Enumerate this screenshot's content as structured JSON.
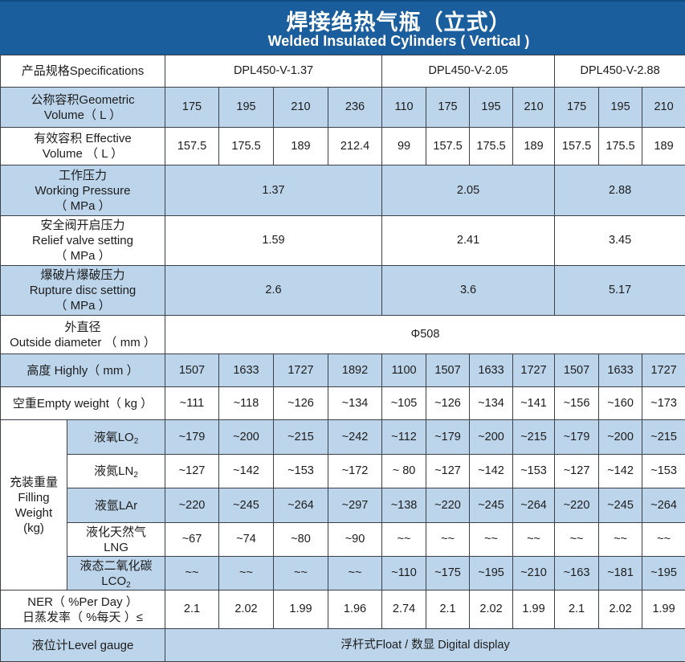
{
  "header": {
    "title_zh": "焊接绝热气瓶（立式）",
    "title_en": "Welded Insulated Cylinders ( Vertical )"
  },
  "colors": {
    "header": "#1b5e9e",
    "row_shade": "#bdd5eb"
  },
  "rows": [
    {
      "label": "产品规格Specifications",
      "shade": "w",
      "h": 40,
      "cells": [
        {
          "v": "DPL450-V-1.37",
          "span": 4
        },
        {
          "v": "DPL450-V-2.05",
          "span": 4
        },
        {
          "v": "DPL450-V-2.88",
          "span": 3
        }
      ]
    },
    {
      "label": "公称容积Geometric\nVolume（ L ）",
      "shade": "b",
      "h": 50,
      "cells": [
        {
          "v": "175"
        },
        {
          "v": "195"
        },
        {
          "v": "210"
        },
        {
          "v": "236"
        },
        {
          "v": "110"
        },
        {
          "v": "175"
        },
        {
          "v": "195"
        },
        {
          "v": "210"
        },
        {
          "v": "175"
        },
        {
          "v": "195"
        },
        {
          "v": "210"
        }
      ]
    },
    {
      "label": "有效容积 Effective\nVolume （ L ）",
      "shade": "w",
      "h": 47,
      "cells": [
        {
          "v": "157.5"
        },
        {
          "v": "175.5"
        },
        {
          "v": "189"
        },
        {
          "v": "212.4"
        },
        {
          "v": "99"
        },
        {
          "v": "157.5"
        },
        {
          "v": "175.5"
        },
        {
          "v": "189"
        },
        {
          "v": "157.5"
        },
        {
          "v": "175.5"
        },
        {
          "v": "189"
        }
      ]
    },
    {
      "label": "工作压力\nWorking Pressure\n（ MPa ）",
      "shade": "b",
      "h": 63,
      "cells": [
        {
          "v": "1.37",
          "span": 4
        },
        {
          "v": "2.05",
          "span": 4
        },
        {
          "v": "2.88",
          "span": 3
        }
      ]
    },
    {
      "label": "安全阀开启压力\nRelief valve setting\n（ MPa ）",
      "shade": "w",
      "h": 62,
      "cells": [
        {
          "v": "1.59",
          "span": 4
        },
        {
          "v": "2.41",
          "span": 4
        },
        {
          "v": "3.45",
          "span": 3
        }
      ]
    },
    {
      "label": "爆破片爆破压力\nRupture disc setting\n（ MPa ）",
      "shade": "b",
      "h": 62,
      "cells": [
        {
          "v": "2.6",
          "span": 4
        },
        {
          "v": "3.6",
          "span": 4
        },
        {
          "v": "5.17",
          "span": 3
        }
      ]
    },
    {
      "label": "外直径\nOutside diameter （ mm ）",
      "shade": "w",
      "h": 48,
      "cells": [
        {
          "v": "Φ508",
          "span": 11
        }
      ]
    },
    {
      "label": "高度 Highly（ mm ）",
      "shade": "b",
      "h": 41,
      "cells": [
        {
          "v": "1507"
        },
        {
          "v": "1633"
        },
        {
          "v": "1727"
        },
        {
          "v": "1892"
        },
        {
          "v": "1100"
        },
        {
          "v": "1507"
        },
        {
          "v": "1633"
        },
        {
          "v": "1727"
        },
        {
          "v": "1507"
        },
        {
          "v": "1633"
        },
        {
          "v": "1727"
        }
      ]
    },
    {
      "label": "空重Empty weight（ kg ）",
      "shade": "w",
      "h": 41,
      "cells": [
        {
          "v": "~111"
        },
        {
          "v": "~118"
        },
        {
          "v": "~126"
        },
        {
          "v": "~134"
        },
        {
          "v": "~105"
        },
        {
          "v": "~126"
        },
        {
          "v": "~134"
        },
        {
          "v": "~141"
        },
        {
          "v": "~156"
        },
        {
          "v": "~160"
        },
        {
          "v": "~173"
        }
      ]
    }
  ],
  "filling": {
    "label": "充装重量\nFilling\nWeight\n(kg)",
    "rows": [
      {
        "label": "液氧LO",
        "sub": "2",
        "shade": "b",
        "h": 43,
        "cells": [
          "~179",
          "~200",
          "~215",
          "~242",
          "~112",
          "~179",
          "~200",
          "~215",
          "~179",
          "~200",
          "~215"
        ]
      },
      {
        "label": "液氮LN",
        "sub": "2",
        "shade": "w",
        "h": 42,
        "cells": [
          "~127",
          "~142",
          "~153",
          "~172",
          "~ 80",
          "~127",
          "~142",
          "~153",
          "~127",
          "~142",
          "~153"
        ]
      },
      {
        "label": "液氩LAr",
        "sub": "",
        "shade": "b",
        "h": 43,
        "cells": [
          "~220",
          "~245",
          "~264",
          "~297",
          "~138",
          "~220",
          "~245",
          "~264",
          "~220",
          "~245",
          "~264"
        ]
      },
      {
        "label": "液化天然气\nLNG",
        "sub": "",
        "shade": "w",
        "h": 42,
        "cells": [
          "~67",
          "~74",
          "~80",
          "~90",
          "~~",
          "~~",
          "~~",
          "~~",
          "~~",
          "~~",
          "~~"
        ]
      },
      {
        "label": "液态二氧化碳\nLCO",
        "sub": "2",
        "shade": "b",
        "h": 42,
        "cells": [
          "~~",
          "~~",
          "~~",
          "~~",
          "~110",
          "~175",
          "~195",
          "~210",
          "~163",
          "~181",
          "~195"
        ]
      }
    ]
  },
  "tail": [
    {
      "label": "NER（ %Per Day ）\n日蒸发率（ %每天 ）≤",
      "shade": "w",
      "h": 48,
      "cells": [
        {
          "v": "2.1"
        },
        {
          "v": "2.02"
        },
        {
          "v": "1.99"
        },
        {
          "v": "1.96"
        },
        {
          "v": "2.74"
        },
        {
          "v": "2.1"
        },
        {
          "v": "2.02"
        },
        {
          "v": "1.99"
        },
        {
          "v": "2.1"
        },
        {
          "v": "2.02"
        },
        {
          "v": "1.99"
        }
      ]
    },
    {
      "label": "液位计Level gauge",
      "shade": "b",
      "h": 41,
      "cells": [
        {
          "v": "浮杆式Float / 数显 Digital display",
          "span": 11
        }
      ]
    }
  ]
}
